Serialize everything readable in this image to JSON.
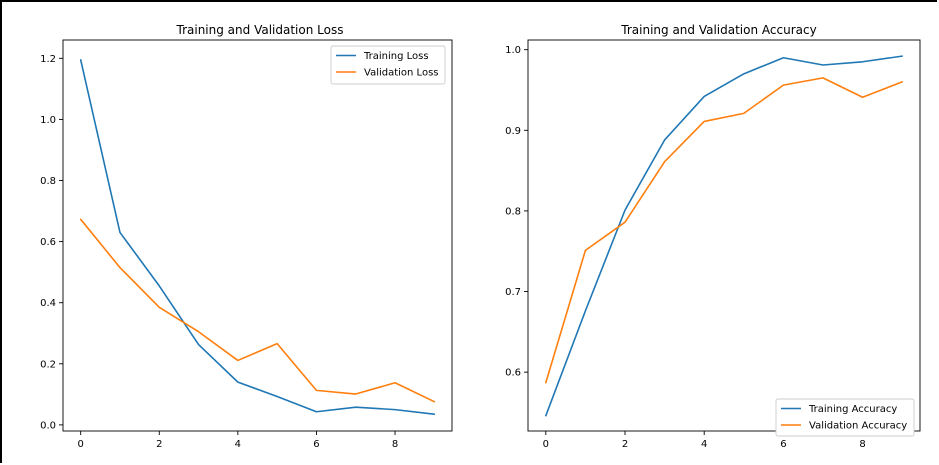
{
  "chart_data": [
    {
      "type": "line",
      "title": "Training and Validation Loss",
      "xlabel": "",
      "ylabel": "",
      "xlim": [
        -0.45,
        9.45
      ],
      "ylim": [
        -0.02,
        1.26
      ],
      "xticks": [
        0,
        2,
        4,
        6,
        8
      ],
      "yticks": [
        0.0,
        0.2,
        0.4,
        0.6,
        0.8,
        1.0,
        1.2
      ],
      "x": [
        0,
        1,
        2,
        3,
        4,
        5,
        6,
        7,
        8,
        9
      ],
      "series": [
        {
          "name": "Training Loss",
          "color": "#1f77b4",
          "values": [
            1.195,
            0.63,
            0.455,
            0.263,
            0.14,
            0.093,
            0.043,
            0.058,
            0.05,
            0.035
          ]
        },
        {
          "name": "Validation Loss",
          "color": "#ff7f0e",
          "values": [
            0.673,
            0.515,
            0.385,
            0.305,
            0.211,
            0.266,
            0.113,
            0.101,
            0.138,
            0.076
          ]
        }
      ],
      "legend": "upper right",
      "grid": false
    },
    {
      "type": "line",
      "title": "Training and Validation Accuracy",
      "xlabel": "",
      "ylabel": "",
      "xlim": [
        -0.45,
        9.45
      ],
      "ylim": [
        0.527,
        1.012
      ],
      "xticks": [
        0,
        2,
        4,
        6,
        8
      ],
      "yticks": [
        0.6,
        0.7,
        0.8,
        0.9,
        1.0
      ],
      "x": [
        0,
        1,
        2,
        3,
        4,
        5,
        6,
        7,
        8,
        9
      ],
      "series": [
        {
          "name": "Training Accuracy",
          "color": "#1f77b4",
          "values": [
            0.546,
            0.676,
            0.801,
            0.888,
            0.942,
            0.97,
            0.99,
            0.981,
            0.985,
            0.992
          ]
        },
        {
          "name": "Validation Accuracy",
          "color": "#ff7f0e",
          "values": [
            0.587,
            0.751,
            0.786,
            0.861,
            0.911,
            0.921,
            0.956,
            0.965,
            0.941,
            0.96
          ]
        }
      ],
      "legend": "lower right",
      "grid": false
    }
  ]
}
